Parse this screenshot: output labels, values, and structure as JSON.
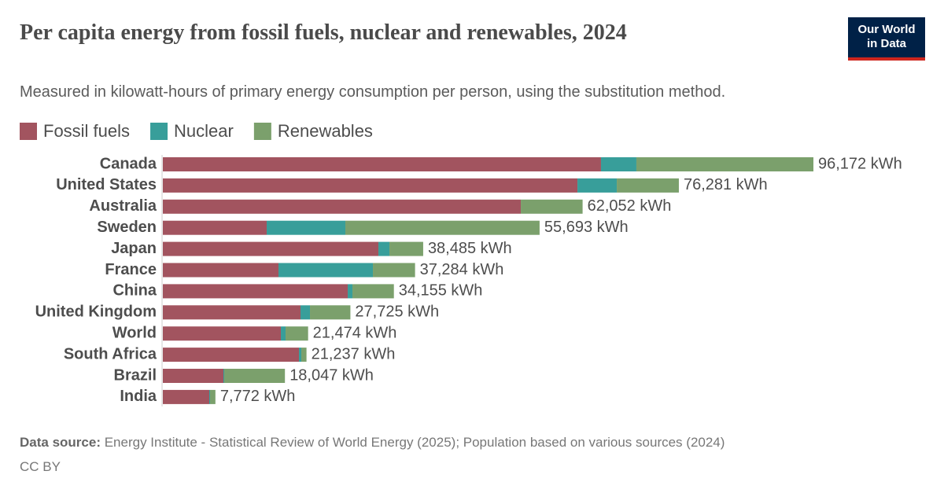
{
  "chart_data": {
    "type": "stacked-barh",
    "title": "Per capita energy from fossil fuels, nuclear and renewables, 2024",
    "subtitle": "Measured in kilowatt-hours of primary energy consumption per person, using the substitution method.",
    "categories": [
      "Canada",
      "United States",
      "Australia",
      "Sweden",
      "Japan",
      "France",
      "China",
      "United Kingdom",
      "World",
      "South Africa",
      "Brazil",
      "India"
    ],
    "series": [
      {
        "name": "Fossil fuels",
        "color": "#a2545f",
        "values": [
          64770,
          61290,
          52915,
          15351,
          31866,
          17096,
          27330,
          20352,
          17445,
          20120,
          8955,
          6862
        ]
      },
      {
        "name": "Nuclear",
        "color": "#389e9a",
        "values": [
          5233,
          5815,
          0,
          11630,
          1628,
          13956,
          698,
          1396,
          698,
          349,
          116,
          116
        ]
      },
      {
        "name": "Renewables",
        "color": "#7ba06c",
        "values": [
          26169,
          9176,
          9137,
          28712,
          4991,
          6232,
          6127,
          5977,
          3331,
          768,
          8976,
          794
        ]
      }
    ],
    "totals": [
      96172,
      76281,
      62052,
      55693,
      38485,
      37284,
      34155,
      27725,
      21474,
      21237,
      18047,
      7772
    ],
    "total_labels": [
      "96,172 kWh",
      "76,281 kWh",
      "62,052 kWh",
      "55,693 kWh",
      "38,485 kWh",
      "37,284 kWh",
      "34,155 kWh",
      "27,725 kWh",
      "21,474 kWh",
      "21,237 kWh",
      "18,047 kWh",
      "7,772 kWh"
    ],
    "source_label": "Data source:",
    "source": "Energy Institute - Statistical Review of World Energy (2025); Population based on various sources (2024)",
    "license": "CC BY",
    "logo": [
      "Our World",
      "in Data"
    ]
  }
}
